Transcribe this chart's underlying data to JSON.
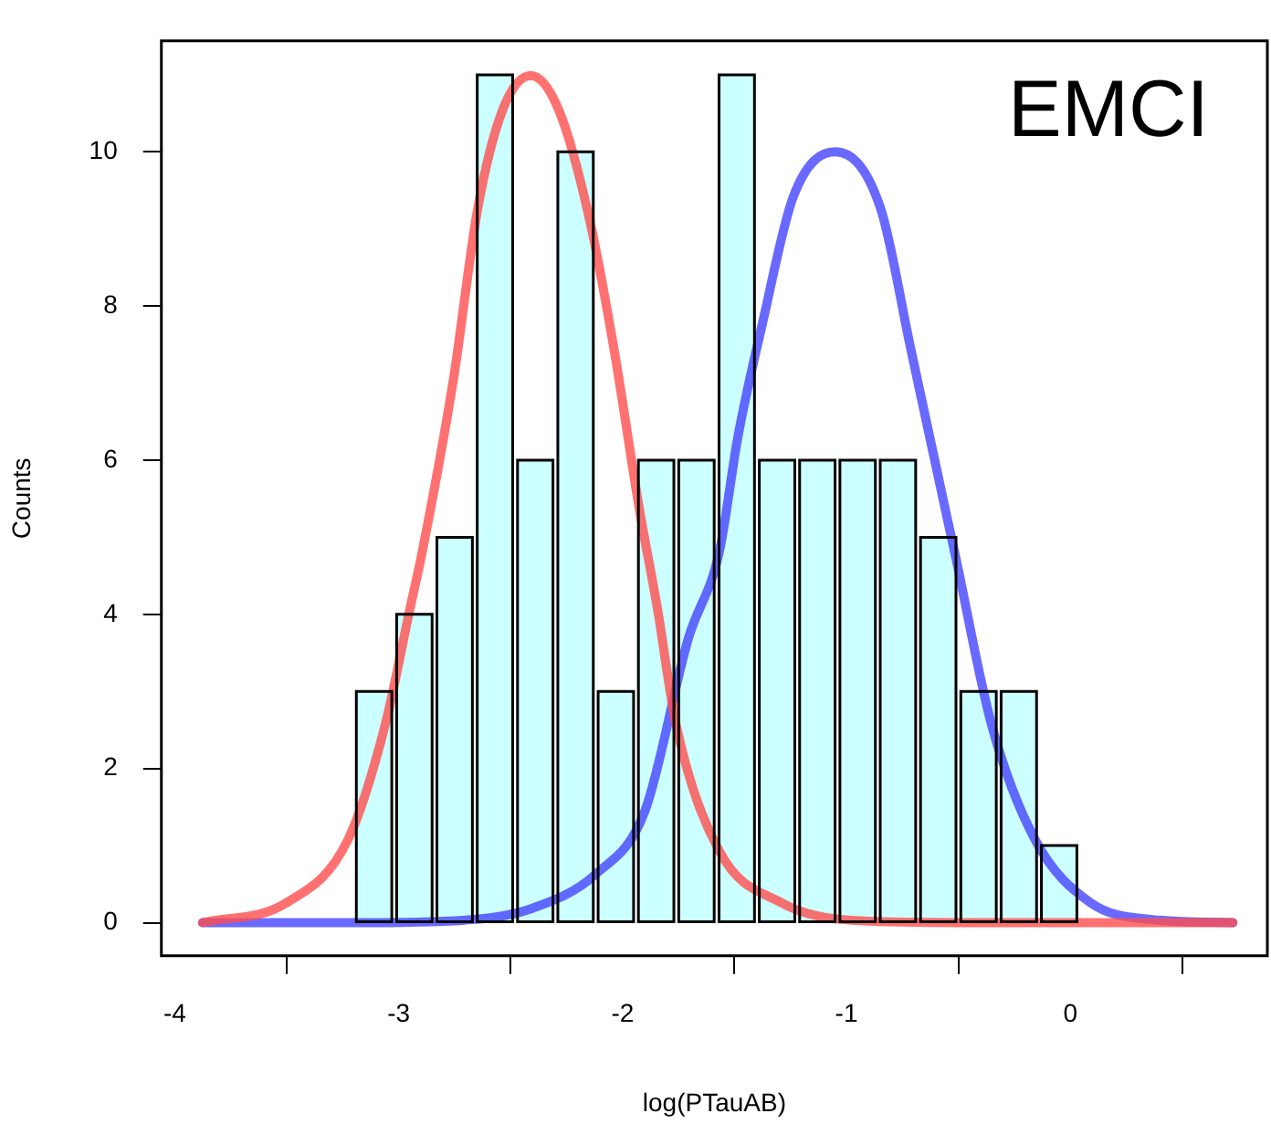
{
  "chart_data": {
    "type": "histogram",
    "xlabel": "log(PTauAB)",
    "ylabel": "Counts",
    "annotations": [
      "EMCI"
    ],
    "bins": [
      -3.74,
      -3.56,
      -3.38,
      -3.2,
      -3.02,
      -2.84,
      -2.66,
      -2.48,
      -2.3,
      -2.12,
      -1.94,
      -1.76,
      -1.58,
      -1.4,
      -1.22,
      -1.04,
      -0.86,
      -0.68,
      -0.5,
      -0.32,
      -0.14,
      0.04,
      0.22,
      0.4,
      0.58,
      0.76
    ],
    "series": [
      {
        "color": "#ccffff",
        "values": [
          0,
          0,
          0,
          3,
          4,
          5,
          11,
          6,
          10,
          3,
          6,
          6,
          11,
          6,
          6,
          6,
          6,
          5,
          3,
          3,
          1,
          0,
          0,
          0,
          0
        ]
      },
      {
        "type": "line",
        "color": "#ff4d4d",
        "x": [
          -3.876,
          -3.5,
          -3.226,
          -3.06,
          -2.95,
          -2.895,
          -2.756,
          -2.646,
          -2.535,
          -2.41,
          -2.286,
          -2.148,
          -2.037,
          -1.927,
          -1.844,
          -1.761,
          -1.568,
          -1.291,
          -1.015,
          -0.5,
          0,
          0.726
        ],
        "values": [
          0,
          0.26,
          1.08,
          2.57,
          4.07,
          4.81,
          7.04,
          9.28,
          10.55,
          10.99,
          10.55,
          9.13,
          7.42,
          5.4,
          4.07,
          2.57,
          0.93,
          0.26,
          0.04,
          0,
          0,
          0
        ]
      },
      {
        "type": "line",
        "color": "#4444ff",
        "x": [
          -3.876,
          -3.2,
          -2.67,
          -2.4,
          -2.12,
          -1.9,
          -1.706,
          -1.568,
          -1.485,
          -1.374,
          -1.236,
          -1.05,
          -0.849,
          -0.711,
          -0.545,
          -0.517,
          -0.352,
          -0.158,
          0.09,
          0.367,
          0.726
        ],
        "values": [
          0,
          0,
          0.04,
          0.19,
          0.63,
          1.45,
          3.69,
          4.81,
          6.3,
          7.79,
          9.43,
          10.0,
          9.28,
          7.42,
          5.18,
          4.81,
          2.57,
          1.08,
          0.26,
          0.04,
          0
        ]
      }
    ],
    "xlim": [
      -4.06,
      0.88
    ],
    "ylim": [
      -0.43,
      11.44
    ],
    "xticks": [
      -4,
      -3,
      -2,
      -1,
      0
    ],
    "yticks": [
      0,
      2,
      4,
      6,
      8,
      10
    ],
    "grid": false,
    "legend": false,
    "marker": "none",
    "line_style": "solid"
  }
}
